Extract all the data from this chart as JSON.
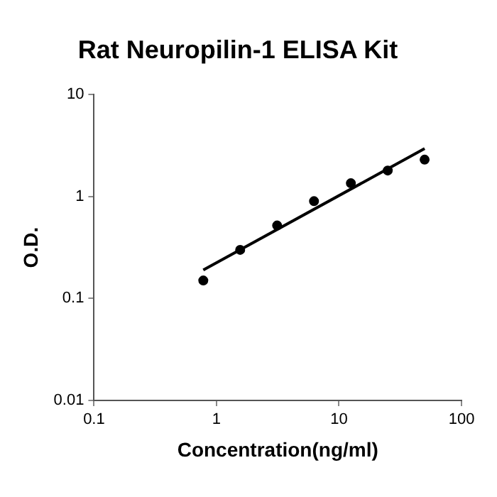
{
  "chart_data": {
    "type": "scatter",
    "title": "Rat Neuropilin-1 ELISA Kit",
    "xlabel": "Concentration(ng/ml)",
    "ylabel": "O.D.",
    "log": "xy",
    "xlim": [
      0.1,
      100
    ],
    "ylim": [
      0.01,
      10
    ],
    "xticks": [
      0.1,
      1,
      10,
      100
    ],
    "yticks": [
      0.01,
      0.1,
      1,
      10
    ],
    "grid": false,
    "legend": false,
    "marker": "circle",
    "series": [
      {
        "type": "scatter",
        "color": "#000000",
        "x": [
          0.78,
          1.56,
          3.125,
          6.25,
          12.5,
          25,
          50
        ],
        "values": [
          0.15,
          0.3,
          0.52,
          0.9,
          1.35,
          1.8,
          2.3
        ]
      },
      {
        "type": "line",
        "color": "#000000",
        "marker": "none",
        "line_style": "solid",
        "x": [
          0.78,
          50
        ],
        "values": [
          0.19,
          2.95
        ]
      }
    ]
  }
}
